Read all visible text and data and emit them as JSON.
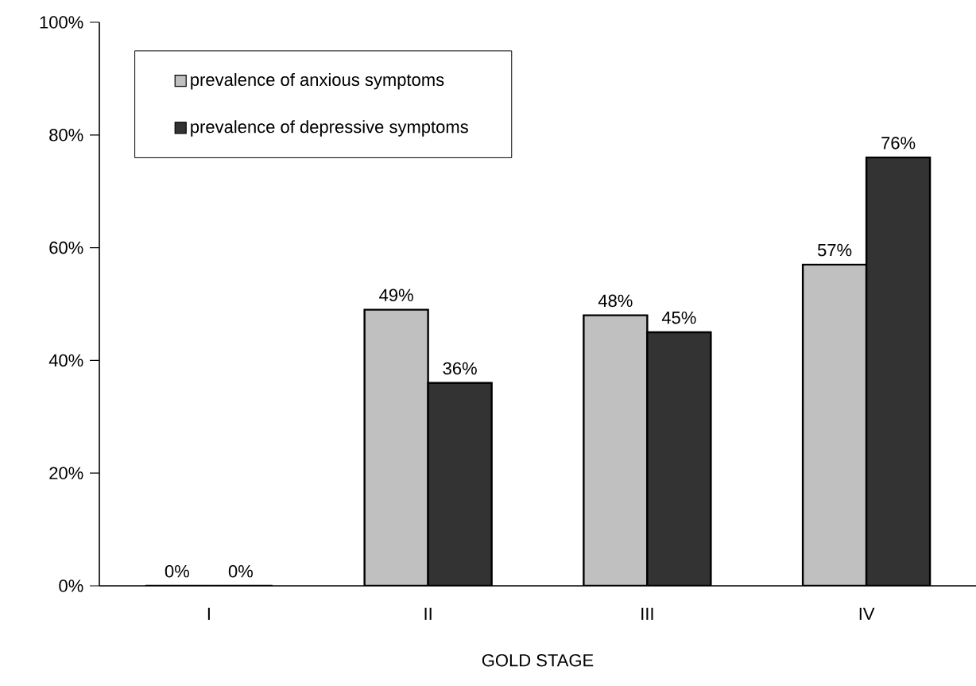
{
  "chart_data": {
    "type": "bar",
    "xlabel": "GOLD STAGE",
    "categories": [
      "I",
      "II",
      "III",
      "IV"
    ],
    "series": [
      {
        "name": "prevalence of anxious symptoms",
        "color": "#c0c0c0",
        "values": [
          0,
          49,
          48,
          57
        ],
        "value_labels": [
          "0%",
          "49%",
          "48%",
          "57%"
        ]
      },
      {
        "name": "prevalence of depressive symptoms",
        "color": "#333333",
        "values": [
          0,
          36,
          45,
          76
        ],
        "value_labels": [
          "0%",
          "36%",
          "45%",
          "76%"
        ]
      }
    ],
    "ylim": [
      0,
      100
    ],
    "yticks": [
      {
        "value": 0,
        "label": "0%"
      },
      {
        "value": 20,
        "label": "20%"
      },
      {
        "value": 40,
        "label": "40%"
      },
      {
        "value": 60,
        "label": "60%"
      },
      {
        "value": 80,
        "label": "80%"
      },
      {
        "value": 100,
        "label": "100%"
      }
    ],
    "legend": "top left",
    "grid": false
  }
}
